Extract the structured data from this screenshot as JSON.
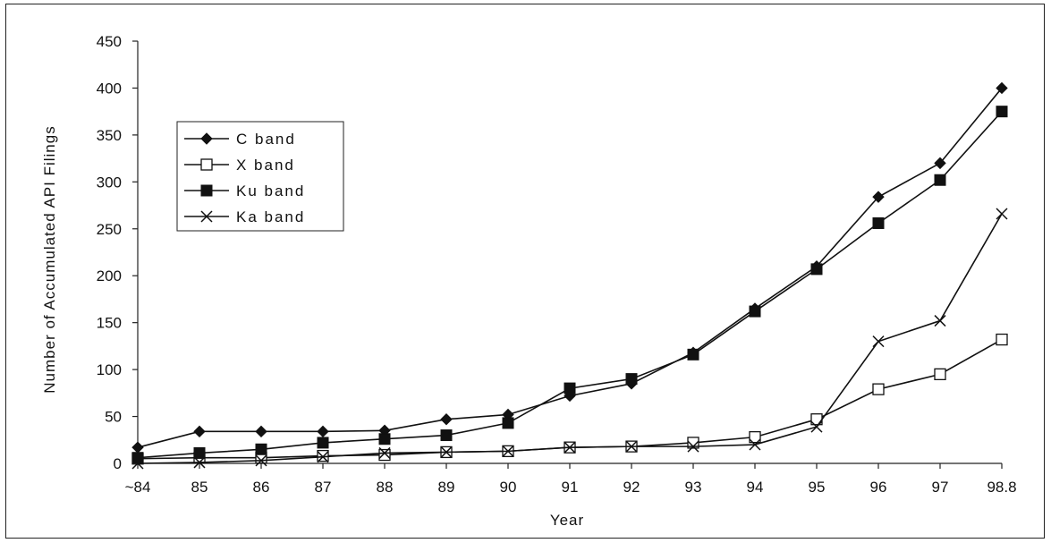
{
  "chart_data": {
    "type": "line",
    "title": "",
    "xlabel": "Year",
    "ylabel": "Number of Accumulated API Filings",
    "categories": [
      "~84",
      "85",
      "86",
      "87",
      "88",
      "89",
      "90",
      "91",
      "92",
      "93",
      "94",
      "95",
      "96",
      "97",
      "98.8"
    ],
    "ylim": [
      0,
      450
    ],
    "yticks": [
      0,
      50,
      100,
      150,
      200,
      250,
      300,
      350,
      400,
      450
    ],
    "grid": false,
    "legend_position": "left",
    "series": [
      {
        "name": "C band",
        "marker": "diamond",
        "values": [
          17,
          34,
          34,
          34,
          35,
          47,
          52,
          72,
          85,
          118,
          165,
          210,
          284,
          320,
          400
        ]
      },
      {
        "name": "X band",
        "marker": "open-square",
        "values": [
          5,
          6,
          6,
          8,
          9,
          12,
          13,
          17,
          18,
          22,
          28,
          47,
          79,
          95,
          132
        ]
      },
      {
        "name": "Ku band",
        "marker": "filled-square",
        "values": [
          6,
          11,
          15,
          22,
          26,
          30,
          43,
          80,
          90,
          116,
          162,
          207,
          256,
          302,
          375
        ]
      },
      {
        "name": "Ka band",
        "marker": "x",
        "values": [
          0,
          1,
          3,
          7,
          11,
          12,
          13,
          17,
          18,
          18,
          20,
          39,
          130,
          152,
          266
        ]
      }
    ]
  }
}
